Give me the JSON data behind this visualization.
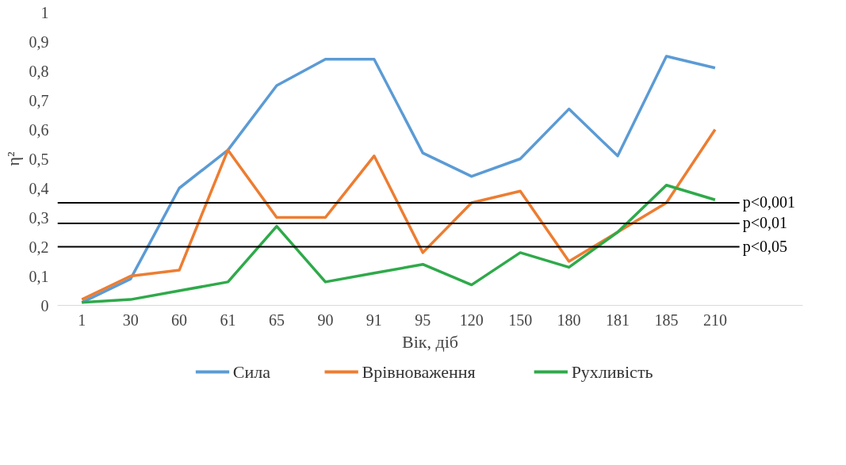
{
  "chart_data": {
    "type": "line",
    "xlabel": "Вік, діб",
    "ylabel": "η²",
    "categories": [
      "1",
      "30",
      "60",
      "61",
      "65",
      "90",
      "91",
      "95",
      "120",
      "150",
      "180",
      "181",
      "185",
      "210"
    ],
    "series": [
      {
        "name": "Сила",
        "color": "#5b9bd5",
        "values": [
          0.01,
          0.09,
          0.4,
          0.53,
          0.75,
          0.84,
          0.84,
          0.52,
          0.44,
          0.5,
          0.67,
          0.51,
          0.85,
          0.81
        ]
      },
      {
        "name": "Врівноваження",
        "color": "#ed7d31",
        "values": [
          0.02,
          0.1,
          0.12,
          0.53,
          0.3,
          0.3,
          0.51,
          0.18,
          0.35,
          0.39,
          0.15,
          0.25,
          0.35,
          0.6
        ]
      },
      {
        "name": "Рухливість",
        "color": "#2eaa4a",
        "values": [
          0.01,
          0.02,
          0.05,
          0.08,
          0.27,
          0.08,
          0.11,
          0.14,
          0.07,
          0.18,
          0.13,
          0.25,
          0.41,
          0.36
        ]
      }
    ],
    "ylim": [
      0,
      1
    ],
    "yticks": [
      0,
      {
        "value": 0.1,
        "label": "0,1"
      },
      {
        "value": 0.2,
        "label": "0,2"
      },
      {
        "value": 0.3,
        "label": "0,3"
      },
      {
        "value": 0.4,
        "label": "0,4"
      },
      {
        "value": 0.5,
        "label": "0,5"
      },
      {
        "value": 0.6,
        "label": "0,6"
      },
      {
        "value": 0.7,
        "label": "0,7"
      },
      {
        "value": 0.8,
        "label": "0,8"
      },
      {
        "value": 0.9,
        "label": "0,9"
      },
      1
    ],
    "ref_lines": [
      {
        "axis": "y",
        "value": 0.35,
        "label": "p<0,001",
        "color": "#000000"
      },
      {
        "axis": "y",
        "value": 0.28,
        "label": "p<0,01",
        "color": "#000000"
      },
      {
        "axis": "y",
        "value": 0.2,
        "label": "p<0,05",
        "color": "#000000"
      }
    ],
    "grid": false,
    "legend": "bottom",
    "marker": "none",
    "line_style": "solid"
  }
}
